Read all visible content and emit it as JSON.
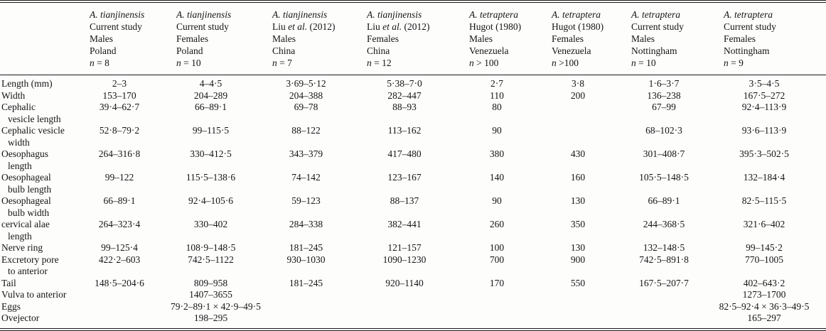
{
  "table": {
    "columns": [
      {
        "species": "A. tianjinensis",
        "source_parts": [
          "Current study",
          "",
          ""
        ],
        "sex": "Males",
        "location": "Poland",
        "n_italic": "n",
        "n_text": " = 8"
      },
      {
        "species": "A. tianjinensis",
        "source_parts": [
          "Current study",
          "",
          ""
        ],
        "sex": "Females",
        "location": "Poland",
        "n_italic": "n",
        "n_text": " = 10"
      },
      {
        "species": "A. tianjinensis",
        "source_parts": [
          "Liu ",
          "et al.",
          " (2012)"
        ],
        "sex": "Males",
        "location": "China",
        "n_italic": "n",
        "n_text": " = 7"
      },
      {
        "species": "A. tianjinensis",
        "source_parts": [
          "Liu ",
          "et al.",
          " (2012)"
        ],
        "sex": "Females",
        "location": "China",
        "n_italic": "n",
        "n_text": " = 12"
      },
      {
        "species": "A. tetraptera",
        "source_parts": [
          "Hugot (1980)",
          "",
          ""
        ],
        "sex": "Males",
        "location": "Venezuela",
        "n_italic": "n",
        "n_text": " > 100"
      },
      {
        "species": "A. tetraptera",
        "source_parts": [
          "Hugot (1980)",
          "",
          ""
        ],
        "sex": "Females",
        "location": "Venezuela",
        "n_italic": "n",
        "n_text": " >100"
      },
      {
        "species": "A. tetraptera",
        "source_parts": [
          "Current study",
          "",
          ""
        ],
        "sex": "Males",
        "location": "Nottingham",
        "n_italic": "n",
        "n_text": " = 10"
      },
      {
        "species": "A. tetraptera",
        "source_parts": [
          "Current study",
          "",
          ""
        ],
        "sex": "Females",
        "location": "Nottingham",
        "n_italic": "n",
        "n_text": " = 9"
      }
    ],
    "rows": [
      {
        "label_lines": [
          "Length (mm)"
        ],
        "values": [
          "2–3",
          "4–4·5",
          "3·69–5·12",
          "5·38–7·0",
          "2·7",
          "3·8",
          "1·6–3·7",
          "3·5–4·5"
        ]
      },
      {
        "label_lines": [
          "Width"
        ],
        "values": [
          "153–170",
          "204–289",
          "204–388",
          "282–447",
          "110",
          "200",
          "136–238",
          "167·5–272"
        ]
      },
      {
        "label_lines": [
          "Cephalic",
          "vesicle length"
        ],
        "values": [
          "39·4–62·7",
          "66–89·1",
          "69–78",
          "88–93",
          "80",
          "",
          "67–99",
          "92·4–113·9"
        ]
      },
      {
        "label_lines": [
          "Cephalic vesicle",
          "width"
        ],
        "values": [
          "52·8–79·2",
          "99–115·5",
          "88–122",
          "113–162",
          "90",
          "",
          "68–102·3",
          "93·6–113·9"
        ]
      },
      {
        "label_lines": [
          "Oesophagus",
          "length"
        ],
        "values": [
          "264–316·8",
          "330–412·5",
          "343–379",
          "417–480",
          "380",
          "430",
          "301–408·7",
          "395·3–502·5"
        ]
      },
      {
        "label_lines": [
          "Oesophageal",
          "bulb length"
        ],
        "values": [
          "99–122",
          "115·5–138·6",
          "74–142",
          "123–167",
          "140",
          "160",
          "105·5–148·5",
          "132–184·4"
        ]
      },
      {
        "label_lines": [
          "Oesophageal",
          "bulb width"
        ],
        "values": [
          "66–89·1",
          "92·4–105·6",
          "59–123",
          "88–137",
          "90",
          "130",
          "66–89·1",
          "82·5–115·5"
        ]
      },
      {
        "label_lines": [
          "cervical alae",
          "length"
        ],
        "values": [
          "264–323·4",
          "330–402",
          "284–338",
          "382–441",
          "260",
          "350",
          "244–368·5",
          "321·6–402"
        ]
      },
      {
        "label_lines": [
          "Nerve ring"
        ],
        "values": [
          "99–125·4",
          "108·9–148·5",
          "181–245",
          "121–157",
          "100",
          "130",
          "132–148·5",
          "99–145·2"
        ]
      },
      {
        "label_lines": [
          "Excretory pore",
          "to anterior"
        ],
        "values": [
          "422·2–603",
          "742·5–1122",
          "930–1030",
          "1090–1230",
          "700",
          "900",
          "742·5–891·8",
          "770–1005"
        ]
      },
      {
        "label_lines": [
          "Tail"
        ],
        "values": [
          "148·5–204·6",
          "809–958",
          "181–245",
          "920–1140",
          "170",
          "550",
          "167·5–207·7",
          "402–643·2"
        ]
      },
      {
        "label_lines": [
          "Vulva to anterior"
        ],
        "values": [
          "",
          "1407–3655",
          "",
          "",
          "",
          "",
          "",
          "1273–1700"
        ]
      },
      {
        "label_lines": [
          "Eggs"
        ],
        "values": [
          "",
          "79·2–89·1 × 42·9–49·5",
          "",
          "",
          "",
          "",
          "",
          "82·5–92·4 × 36·3–49·5"
        ]
      },
      {
        "label_lines": [
          "Ovejector"
        ],
        "values": [
          "",
          "198–295",
          "",
          "",
          "",
          "",
          "",
          "165–297"
        ]
      }
    ]
  }
}
